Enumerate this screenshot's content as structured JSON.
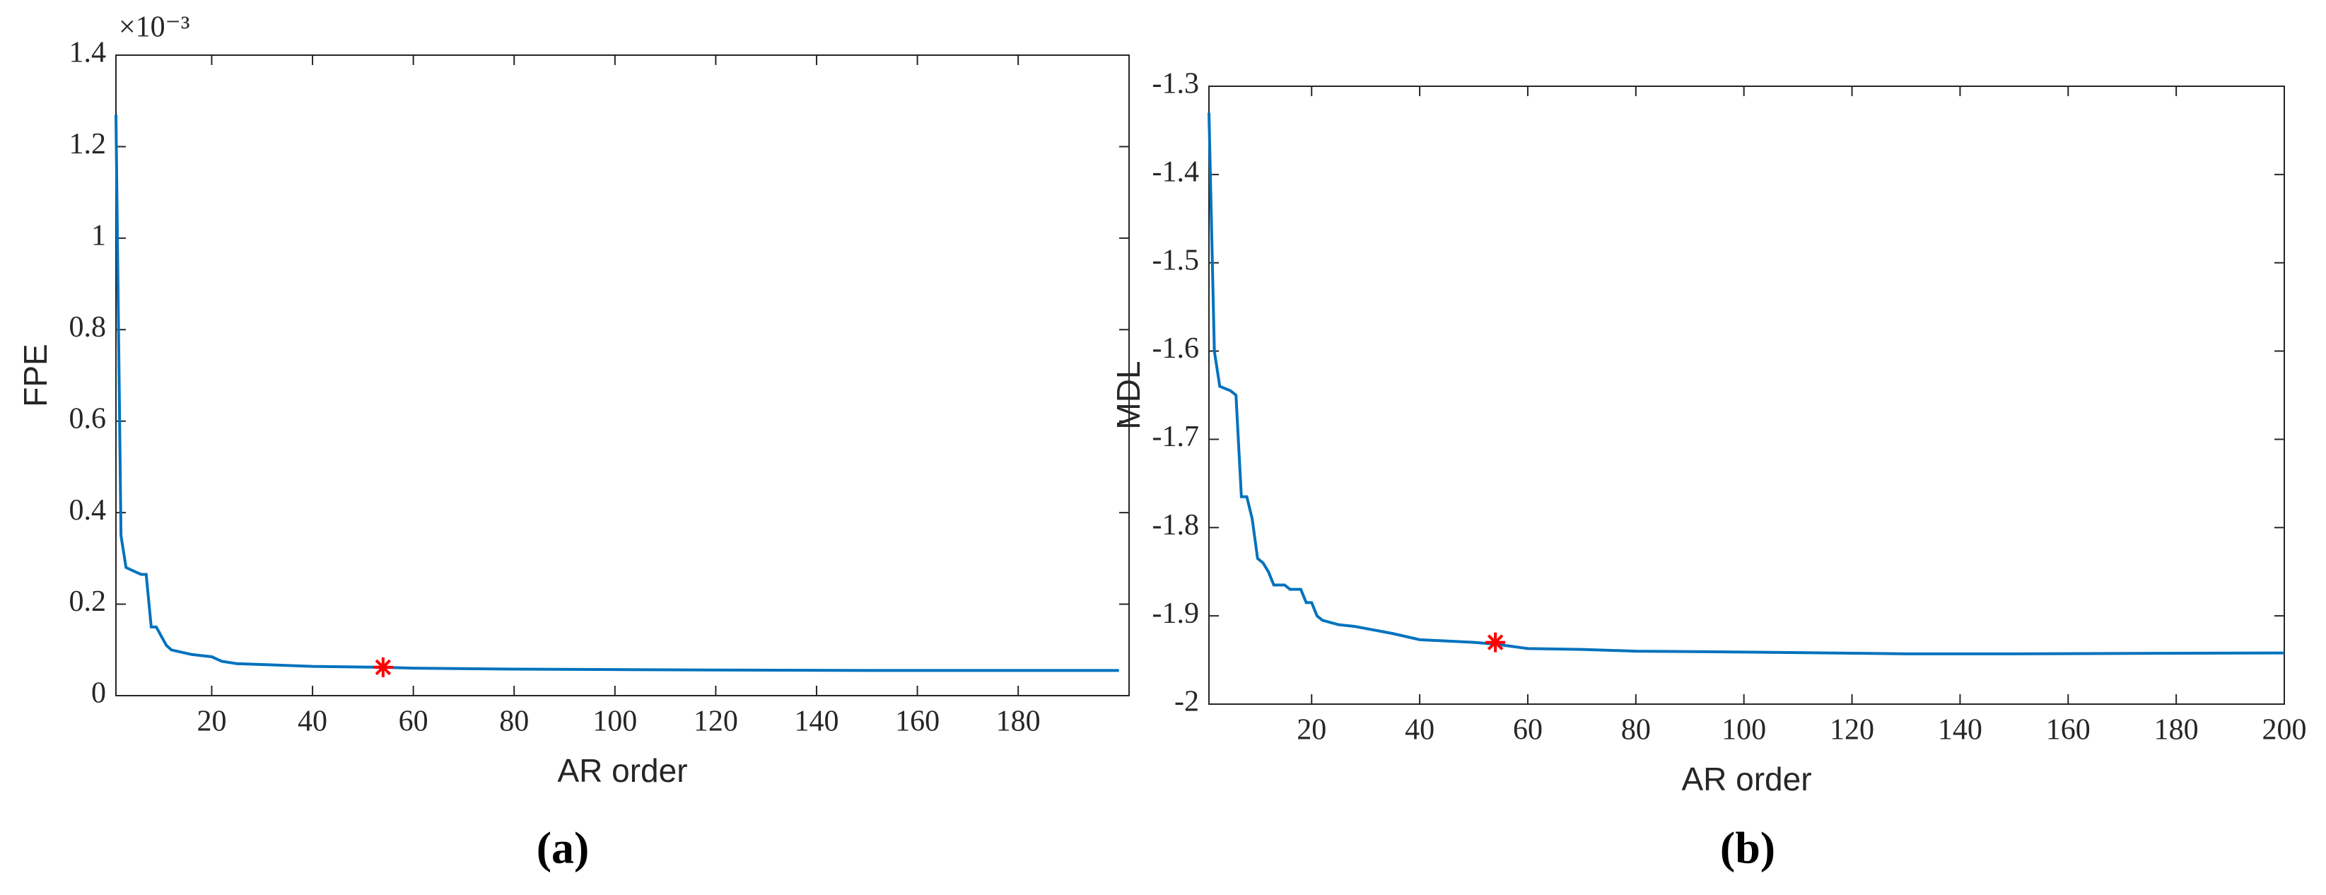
{
  "chart_data": [
    {
      "type": "line",
      "label": "(a)",
      "xlabel": "AR order",
      "ylabel": "FPE",
      "y_exponent": "×10⁻³",
      "xlim": [
        1,
        202
      ],
      "ylim": [
        0,
        1.4
      ],
      "xticks": [
        20,
        40,
        60,
        80,
        100,
        120,
        140,
        160,
        180
      ],
      "yticks": [
        0,
        0.2,
        0.4,
        0.6,
        0.8,
        1,
        1.2,
        1.4
      ],
      "x": [
        1,
        2,
        3,
        4,
        5,
        6,
        7,
        8,
        9,
        10,
        11,
        12,
        14,
        16,
        20,
        22,
        25,
        30,
        40,
        54,
        60,
        80,
        100,
        120,
        150,
        200
      ],
      "values": [
        1.27,
        0.35,
        0.28,
        0.275,
        0.27,
        0.265,
        0.265,
        0.15,
        0.15,
        0.13,
        0.11,
        0.1,
        0.095,
        0.09,
        0.085,
        0.075,
        0.07,
        0.068,
        0.064,
        0.062,
        0.06,
        0.058,
        0.057,
        0.056,
        0.055,
        0.055
      ],
      "color": "#0072bd",
      "marker": {
        "x": 54,
        "y": 0.062,
        "color": "#ff0000"
      }
    },
    {
      "type": "line",
      "label": "(b)",
      "xlabel": "AR order",
      "ylabel": "MDL",
      "xlim": [
        1,
        200
      ],
      "ylim": [
        -2,
        -1.3
      ],
      "xticks": [
        20,
        40,
        60,
        80,
        100,
        120,
        140,
        160,
        180,
        200
      ],
      "yticks": [
        -2,
        -1.9,
        -1.8,
        -1.7,
        -1.6,
        -1.5,
        -1.4,
        -1.3
      ],
      "x": [
        1,
        2,
        3,
        5,
        6,
        7,
        8,
        9,
        10,
        11,
        12,
        13,
        15,
        16,
        18,
        19,
        20,
        21,
        22,
        25,
        28,
        35,
        40,
        50,
        54,
        60,
        70,
        80,
        100,
        130,
        150,
        200
      ],
      "values": [
        -1.33,
        -1.6,
        -1.64,
        -1.645,
        -1.65,
        -1.765,
        -1.765,
        -1.79,
        -1.835,
        -1.84,
        -1.85,
        -1.865,
        -1.865,
        -1.87,
        -1.87,
        -1.885,
        -1.885,
        -1.9,
        -1.905,
        -1.91,
        -1.912,
        -1.92,
        -1.927,
        -1.93,
        -1.932,
        -1.937,
        -1.938,
        -1.94,
        -1.941,
        -1.943,
        -1.943,
        -1.942
      ],
      "color": "#0072bd",
      "marker": {
        "x": 54,
        "y": -1.93,
        "color": "#ff0000"
      }
    }
  ]
}
